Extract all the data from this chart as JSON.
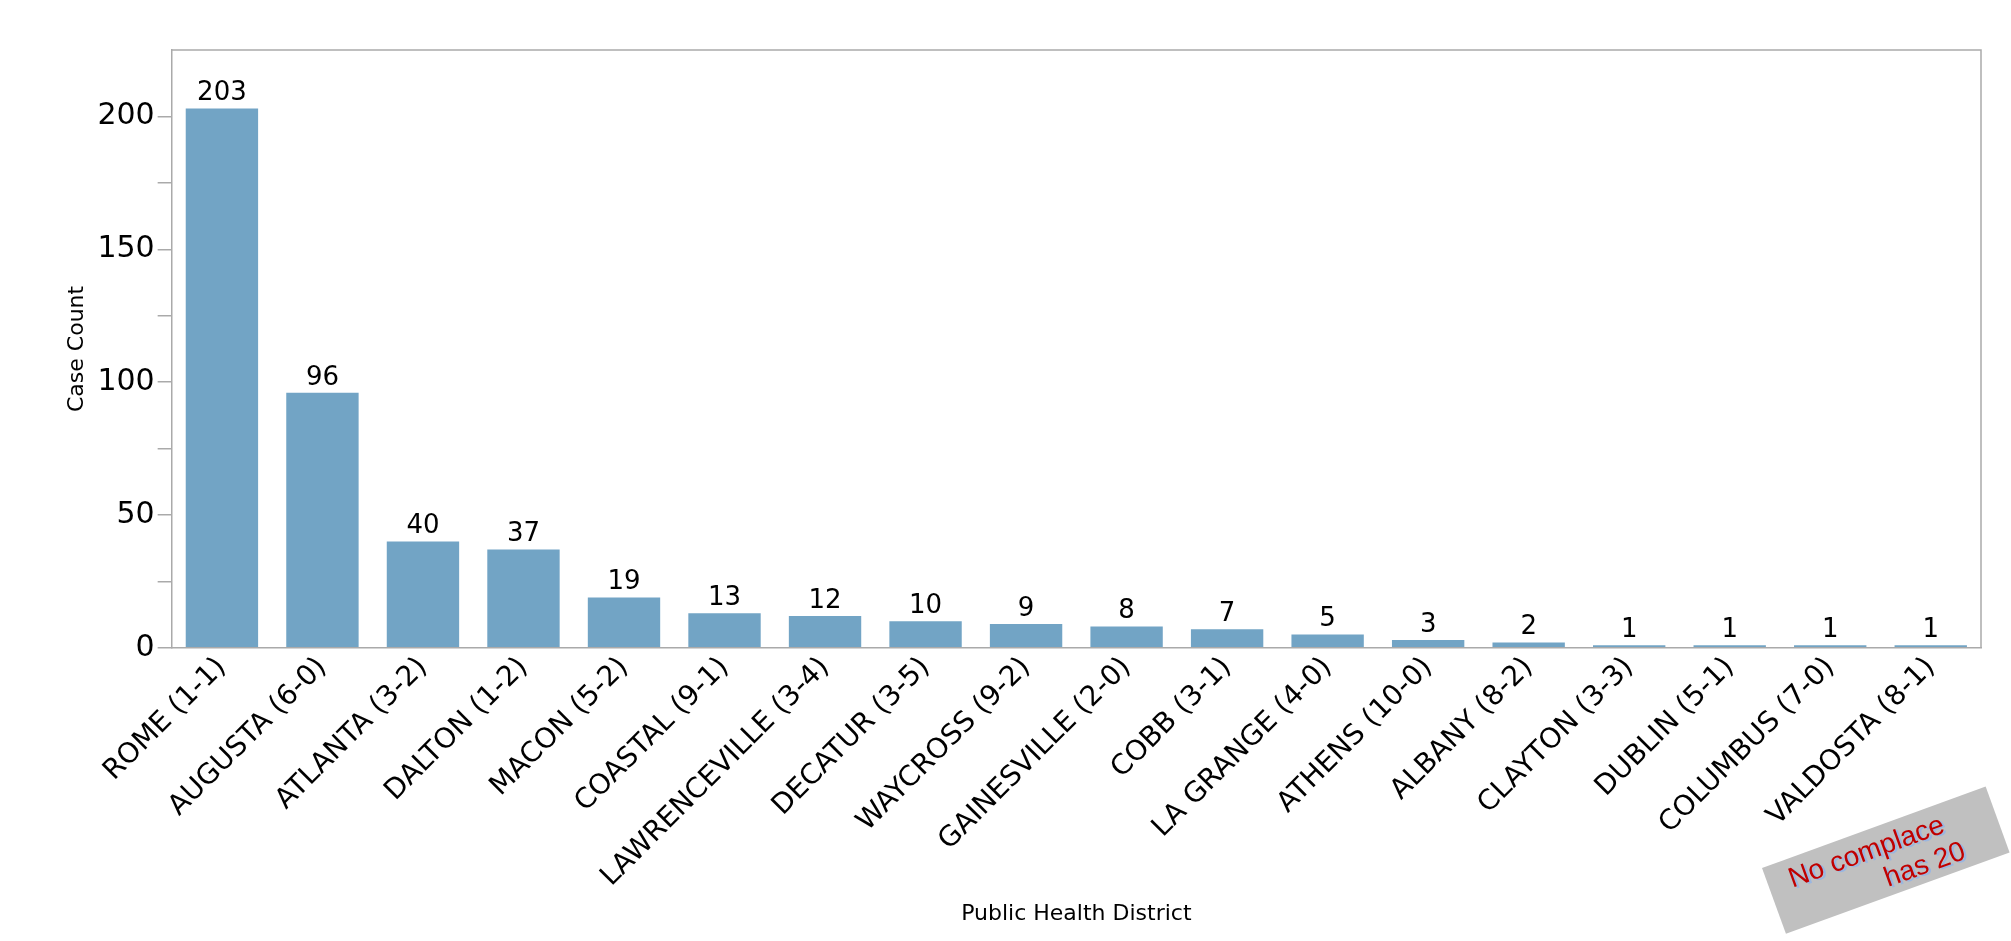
{
  "chart_data": {
    "type": "bar",
    "xlabel": "Public Health District",
    "ylabel": "Case Count",
    "categories": [
      "ROME (1-1)",
      "AUGUSTA (6-0)",
      "ATLANTA (3-2)",
      "DALTON (1-2)",
      "MACON (5-2)",
      "COASTAL (9-1)",
      "LAWRENCEVILLE (3-4)",
      "DECATUR (3-5)",
      "WAYCROSS (9-2)",
      "GAINESVILLE (2-0)",
      "COBB (3-1)",
      "LA GRANGE (4-0)",
      "ATHENS (10-0)",
      "ALBANY (8-2)",
      "CLAYTON (3-3)",
      "DUBLIN (5-1)",
      "COLUMBUS (7-0)",
      "VALDOSTA (8-1)"
    ],
    "values": [
      203,
      96,
      40,
      37,
      19,
      13,
      12,
      10,
      9,
      8,
      7,
      5,
      3,
      2,
      1,
      1,
      1,
      1
    ],
    "color": "#72a4c5",
    "data_labels": true,
    "grid": false,
    "legend": false,
    "ylim": [
      0,
      225
    ],
    "yticks": [
      0,
      {
        "value": 25,
        "label": null
      },
      50,
      {
        "value": 75,
        "label": null
      },
      100,
      {
        "value": 125,
        "label": null
      },
      150,
      {
        "value": 175,
        "label": null
      },
      200
    ],
    "annotations": [
      "No complace",
      "has 20"
    ]
  }
}
